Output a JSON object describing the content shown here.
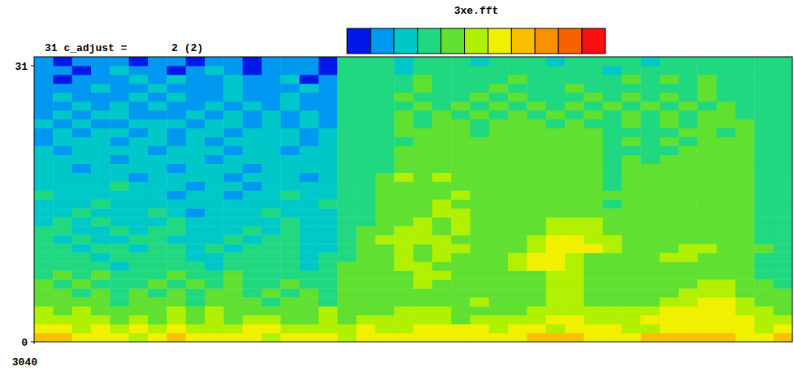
{
  "chart_data": {
    "type": "heatmap",
    "title": "3xe.fft",
    "subtitle": "31 c_adjust =       2 (2)",
    "xlim": [
      3040,
      3080
    ],
    "xticks": [
      3040
    ],
    "ylim": [
      0,
      32
    ],
    "yticks": [
      0,
      31
    ],
    "colorbar": {
      "range": [
        0,
        10
      ],
      "colors": [
        "#0018e8",
        "#0098f0",
        "#00c8c8",
        "#20d880",
        "#60e030",
        "#b0f000",
        "#f0f000",
        "#f8c000",
        "#f89000",
        "#f86000",
        "#f81010"
      ]
    },
    "cells": [
      [
        7,
        7,
        6,
        6,
        6,
        5,
        6,
        7,
        6,
        6,
        6,
        6,
        5,
        6,
        6,
        6,
        5,
        6,
        6,
        6,
        6,
        6,
        6,
        6,
        6,
        6,
        7,
        7,
        7,
        6,
        6,
        6,
        7,
        7,
        7,
        7,
        7,
        6,
        6,
        7
      ],
      [
        6,
        6,
        5,
        6,
        5,
        6,
        5,
        6,
        5,
        5,
        5,
        6,
        6,
        5,
        5,
        5,
        5,
        6,
        5,
        5,
        6,
        6,
        6,
        6,
        5,
        6,
        6,
        5,
        6,
        6,
        6,
        5,
        5,
        6,
        6,
        6,
        6,
        6,
        5,
        6
      ],
      [
        5,
        5,
        5,
        5,
        4,
        5,
        4,
        5,
        4,
        5,
        4,
        5,
        5,
        4,
        4,
        5,
        4,
        5,
        5,
        5,
        5,
        5,
        4,
        5,
        5,
        5,
        5,
        6,
        6,
        5,
        5,
        5,
        6,
        6,
        6,
        6,
        6,
        6,
        5,
        5
      ],
      [
        5,
        4,
        5,
        4,
        4,
        4,
        4,
        5,
        4,
        5,
        4,
        4,
        4,
        4,
        4,
        5,
        4,
        4,
        4,
        5,
        5,
        5,
        4,
        4,
        4,
        4,
        5,
        5,
        5,
        5,
        5,
        5,
        5,
        6,
        6,
        6,
        6,
        5,
        5,
        4
      ],
      [
        4,
        4,
        4,
        4,
        3,
        4,
        4,
        4,
        3,
        4,
        4,
        4,
        3,
        4,
        4,
        3,
        4,
        4,
        4,
        4,
        4,
        4,
        4,
        5,
        4,
        4,
        4,
        5,
        5,
        4,
        4,
        4,
        4,
        5,
        5,
        6,
        6,
        5,
        4,
        4
      ],
      [
        4,
        4,
        3,
        4,
        3,
        4,
        3,
        4,
        3,
        4,
        4,
        3,
        4,
        3,
        4,
        3,
        4,
        4,
        4,
        4,
        4,
        4,
        4,
        4,
        4,
        4,
        4,
        5,
        5,
        4,
        4,
        4,
        4,
        4,
        5,
        5,
        5,
        4,
        4,
        4
      ],
      [
        4,
        3,
        4,
        3,
        3,
        3,
        4,
        3,
        4,
        3,
        4,
        3,
        3,
        4,
        3,
        3,
        4,
        4,
        4,
        4,
        5,
        4,
        4,
        4,
        4,
        4,
        4,
        5,
        5,
        4,
        4,
        4,
        4,
        4,
        4,
        5,
        5,
        4,
        4,
        3
      ],
      [
        3,
        4,
        3,
        4,
        3,
        3,
        3,
        4,
        3,
        3,
        4,
        3,
        3,
        3,
        3,
        3,
        4,
        4,
        4,
        4,
        5,
        5,
        4,
        4,
        4,
        4,
        4,
        5,
        5,
        4,
        4,
        4,
        4,
        4,
        4,
        4,
        4,
        4,
        3,
        3
      ],
      [
        3,
        3,
        3,
        3,
        2,
        3,
        3,
        3,
        3,
        2,
        3,
        3,
        3,
        3,
        2,
        3,
        4,
        4,
        4,
        5,
        5,
        4,
        4,
        4,
        4,
        5,
        6,
        6,
        5,
        4,
        4,
        4,
        4,
        4,
        4,
        4,
        4,
        4,
        3,
        3
      ],
      [
        3,
        3,
        3,
        2,
        3,
        3,
        3,
        3,
        2,
        2,
        3,
        3,
        3,
        3,
        2,
        3,
        3,
        4,
        4,
        5,
        4,
        5,
        4,
        4,
        4,
        5,
        6,
        6,
        5,
        4,
        4,
        4,
        4,
        5,
        5,
        4,
        4,
        4,
        3,
        3
      ],
      [
        3,
        3,
        2,
        3,
        3,
        2,
        3,
        3,
        2,
        3,
        2,
        3,
        3,
        3,
        2,
        2,
        3,
        4,
        4,
        5,
        4,
        5,
        5,
        4,
        4,
        4,
        5,
        6,
        6,
        6,
        5,
        4,
        4,
        4,
        5,
        5,
        4,
        4,
        4,
        3
      ],
      [
        3,
        2,
        3,
        2,
        2,
        3,
        3,
        2,
        2,
        2,
        3,
        2,
        3,
        3,
        2,
        2,
        3,
        4,
        5,
        5,
        5,
        5,
        4,
        4,
        4,
        4,
        5,
        6,
        6,
        5,
        5,
        4,
        4,
        4,
        4,
        4,
        4,
        4,
        3,
        3
      ],
      [
        3,
        3,
        2,
        2,
        3,
        2,
        3,
        3,
        2,
        2,
        2,
        3,
        2,
        3,
        2,
        2,
        3,
        4,
        4,
        5,
        5,
        4,
        5,
        4,
        4,
        4,
        4,
        5,
        5,
        5,
        4,
        4,
        4,
        4,
        4,
        4,
        4,
        4,
        3,
        3
      ],
      [
        2,
        3,
        2,
        3,
        2,
        2,
        2,
        3,
        2,
        2,
        2,
        2,
        2,
        3,
        2,
        2,
        3,
        3,
        4,
        4,
        5,
        4,
        5,
        4,
        4,
        4,
        4,
        5,
        5,
        5,
        4,
        4,
        4,
        4,
        4,
        4,
        4,
        4,
        3,
        3
      ],
      [
        2,
        2,
        3,
        2,
        2,
        2,
        3,
        2,
        1,
        2,
        2,
        2,
        3,
        2,
        2,
        2,
        3,
        3,
        4,
        4,
        4,
        5,
        5,
        4,
        4,
        4,
        4,
        4,
        4,
        4,
        4,
        4,
        4,
        4,
        4,
        4,
        4,
        4,
        3,
        3
      ],
      [
        2,
        2,
        2,
        3,
        2,
        2,
        2,
        2,
        2,
        2,
        2,
        2,
        2,
        2,
        2,
        3,
        3,
        3,
        4,
        4,
        4,
        5,
        4,
        4,
        4,
        4,
        4,
        4,
        4,
        4,
        3,
        4,
        4,
        4,
        4,
        4,
        4,
        4,
        3,
        3
      ],
      [
        3,
        2,
        2,
        2,
        2,
        2,
        2,
        1,
        2,
        2,
        1,
        2,
        2,
        3,
        2,
        2,
        3,
        3,
        4,
        4,
        4,
        4,
        5,
        4,
        4,
        4,
        4,
        4,
        4,
        4,
        4,
        4,
        4,
        4,
        4,
        4,
        4,
        4,
        3,
        3
      ],
      [
        2,
        2,
        2,
        2,
        3,
        2,
        2,
        2,
        1,
        2,
        2,
        1,
        2,
        2,
        2,
        2,
        3,
        3,
        4,
        4,
        4,
        4,
        4,
        4,
        4,
        4,
        4,
        4,
        4,
        4,
        3,
        4,
        4,
        4,
        4,
        4,
        4,
        4,
        3,
        3
      ],
      [
        2,
        2,
        2,
        2,
        2,
        1,
        2,
        2,
        2,
        2,
        1,
        2,
        2,
        2,
        1,
        2,
        3,
        3,
        4,
        5,
        4,
        5,
        4,
        4,
        4,
        4,
        4,
        4,
        4,
        4,
        3,
        4,
        4,
        4,
        4,
        4,
        4,
        4,
        3,
        3
      ],
      [
        2,
        2,
        1,
        2,
        2,
        2,
        2,
        1,
        2,
        2,
        2,
        1,
        2,
        2,
        2,
        2,
        3,
        3,
        3,
        4,
        4,
        4,
        4,
        4,
        4,
        4,
        4,
        4,
        4,
        4,
        3,
        4,
        4,
        4,
        4,
        4,
        4,
        4,
        3,
        3
      ],
      [
        2,
        2,
        2,
        2,
        1,
        2,
        2,
        2,
        2,
        1,
        2,
        2,
        2,
        2,
        2,
        2,
        3,
        3,
        3,
        4,
        4,
        4,
        4,
        4,
        4,
        4,
        4,
        4,
        4,
        4,
        3,
        4,
        3,
        4,
        4,
        4,
        4,
        4,
        3,
        3
      ],
      [
        2,
        1,
        2,
        2,
        2,
        2,
        1,
        2,
        2,
        2,
        1,
        2,
        2,
        1,
        2,
        2,
        3,
        3,
        3,
        4,
        4,
        4,
        4,
        4,
        4,
        4,
        4,
        4,
        4,
        4,
        3,
        3,
        3,
        3,
        4,
        4,
        4,
        4,
        3,
        3
      ],
      [
        1,
        2,
        2,
        2,
        1,
        2,
        2,
        1,
        2,
        1,
        2,
        2,
        2,
        2,
        1,
        2,
        3,
        3,
        3,
        3,
        4,
        4,
        4,
        4,
        4,
        4,
        4,
        4,
        4,
        4,
        3,
        4,
        3,
        4,
        3,
        4,
        4,
        4,
        3,
        3
      ],
      [
        1,
        2,
        1,
        2,
        2,
        1,
        2,
        1,
        2,
        2,
        1,
        2,
        2,
        2,
        1,
        2,
        3,
        3,
        3,
        4,
        4,
        4,
        4,
        3,
        4,
        4,
        4,
        4,
        4,
        4,
        3,
        3,
        3,
        3,
        4,
        4,
        3,
        4,
        3,
        3
      ],
      [
        2,
        1,
        2,
        1,
        1,
        2,
        2,
        2,
        1,
        2,
        2,
        1,
        2,
        1,
        2,
        1,
        3,
        3,
        3,
        4,
        3,
        4,
        4,
        3,
        4,
        4,
        4,
        3,
        4,
        3,
        3,
        4,
        3,
        4,
        3,
        4,
        4,
        4,
        3,
        3
      ],
      [
        1,
        2,
        1,
        2,
        2,
        1,
        1,
        1,
        2,
        1,
        2,
        1,
        2,
        1,
        2,
        1,
        3,
        3,
        3,
        4,
        3,
        4,
        3,
        4,
        3,
        4,
        3,
        4,
        3,
        4,
        3,
        4,
        3,
        4,
        3,
        4,
        4,
        3,
        3,
        3
      ],
      [
        1,
        1,
        2,
        1,
        2,
        1,
        2,
        1,
        1,
        2,
        1,
        2,
        1,
        2,
        1,
        1,
        3,
        3,
        3,
        3,
        4,
        3,
        4,
        3,
        4,
        3,
        4,
        3,
        4,
        3,
        4,
        3,
        4,
        3,
        4,
        3,
        4,
        3,
        3,
        3
      ],
      [
        1,
        2,
        1,
        1,
        1,
        2,
        1,
        2,
        1,
        1,
        2,
        1,
        1,
        2,
        1,
        1,
        3,
        3,
        3,
        4,
        3,
        3,
        3,
        4,
        3,
        4,
        3,
        3,
        3,
        4,
        3,
        4,
        3,
        4,
        3,
        4,
        3,
        3,
        3,
        3
      ],
      [
        1,
        1,
        1,
        2,
        1,
        1,
        2,
        1,
        1,
        1,
        2,
        1,
        1,
        1,
        2,
        1,
        3,
        3,
        3,
        3,
        4,
        3,
        3,
        3,
        4,
        3,
        3,
        3,
        4,
        3,
        3,
        3,
        3,
        3,
        3,
        4,
        3,
        3,
        3,
        3
      ],
      [
        1,
        0,
        1,
        1,
        1,
        2,
        1,
        2,
        1,
        1,
        2,
        1,
        1,
        2,
        0,
        1,
        3,
        3,
        3,
        3,
        4,
        3,
        3,
        3,
        3,
        4,
        3,
        3,
        3,
        3,
        3,
        4,
        3,
        4,
        3,
        4,
        3,
        3,
        3,
        3
      ],
      [
        1,
        1,
        0,
        1,
        2,
        1,
        1,
        0,
        1,
        2,
        1,
        0,
        1,
        1,
        1,
        0,
        3,
        3,
        3,
        2,
        3,
        3,
        3,
        3,
        3,
        3,
        3,
        3,
        3,
        3,
        2,
        3,
        3,
        3,
        3,
        3,
        3,
        3,
        3,
        3
      ],
      [
        1,
        0,
        1,
        1,
        1,
        0,
        1,
        1,
        0,
        1,
        1,
        0,
        1,
        1,
        1,
        0,
        3,
        3,
        3,
        2,
        3,
        3,
        3,
        2,
        3,
        3,
        3,
        2,
        3,
        3,
        3,
        3,
        2,
        3,
        3,
        3,
        3,
        3,
        3,
        3
      ]
    ]
  }
}
